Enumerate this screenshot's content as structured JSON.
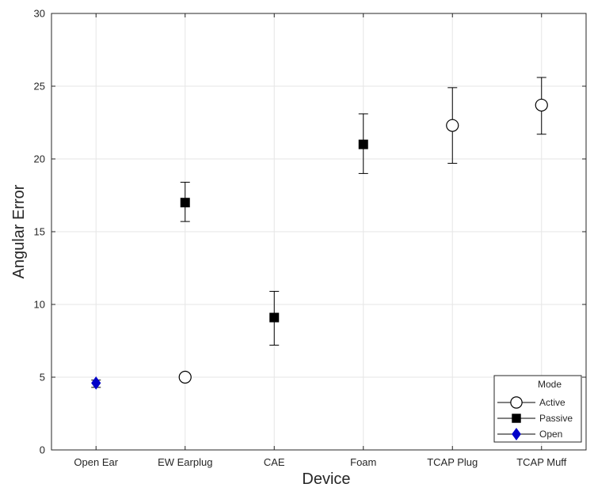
{
  "chart_data": {
    "type": "scatter",
    "title": "",
    "xlabel": "Device",
    "ylabel": "Angular Error",
    "categories": [
      "Open Ear",
      "EW Earplug",
      "CAE",
      "Foam",
      "TCAP Plug",
      "TCAP Muff"
    ],
    "ylim": [
      0,
      30
    ],
    "yticks": [
      0,
      5,
      10,
      15,
      20,
      25,
      30
    ],
    "grid": true,
    "legend": {
      "title": "Mode",
      "position": "bottom-right",
      "entries": [
        "Active",
        "Passive",
        "Open"
      ]
    },
    "series": [
      {
        "name": "Active",
        "marker": "open-circle",
        "color": "#000000",
        "points": [
          {
            "category": "EW Earplug",
            "y": 5.0,
            "err_low": 5.0,
            "err_high": 5.0
          },
          {
            "category": "TCAP Plug",
            "y": 22.3,
            "err_low": 19.7,
            "err_high": 24.9
          },
          {
            "category": "TCAP Muff",
            "y": 23.7,
            "err_low": 21.7,
            "err_high": 25.6
          }
        ]
      },
      {
        "name": "Passive",
        "marker": "filled-square",
        "color": "#000000",
        "points": [
          {
            "category": "EW Earplug",
            "y": 17.0,
            "err_low": 15.7,
            "err_high": 18.4
          },
          {
            "category": "CAE",
            "y": 9.1,
            "err_low": 7.2,
            "err_high": 10.9
          },
          {
            "category": "Foam",
            "y": 21.0,
            "err_low": 19.0,
            "err_high": 23.1
          }
        ]
      },
      {
        "name": "Open",
        "marker": "filled-diamond",
        "color": "#0000c8",
        "points": [
          {
            "category": "Open Ear",
            "y": 4.6,
            "err_low": 4.3,
            "err_high": 4.8
          }
        ]
      }
    ]
  }
}
